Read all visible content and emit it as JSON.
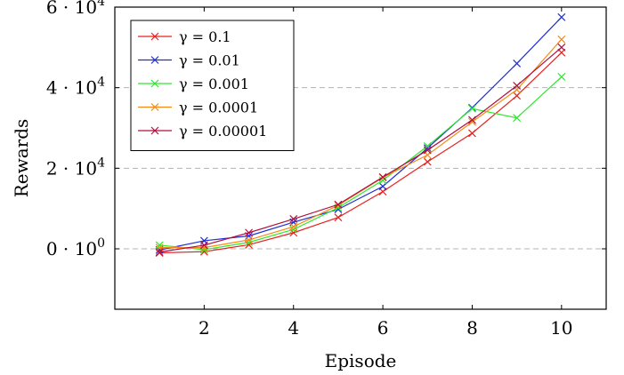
{
  "chart_data": {
    "type": "line",
    "title": "",
    "xlabel": "Episode",
    "ylabel": "Rewards",
    "xlim": [
      0,
      11
    ],
    "ylim": [
      -15000,
      60000
    ],
    "xticks": [
      {
        "value": 2,
        "label": "2"
      },
      {
        "value": 4,
        "label": "4"
      },
      {
        "value": 6,
        "label": "6"
      },
      {
        "value": 8,
        "label": "8"
      },
      {
        "value": 10,
        "label": "10"
      }
    ],
    "yticks": [
      {
        "value": 0,
        "mantissa": "0 · 10",
        "exp": "0"
      },
      {
        "value": 20000,
        "mantissa": "2 · 10",
        "exp": "4"
      },
      {
        "value": 40000,
        "mantissa": "4 · 10",
        "exp": "4"
      },
      {
        "value": 60000,
        "mantissa": "6 · 10",
        "exp": "4"
      }
    ],
    "grid": "horizontal-dashed",
    "legend_position": "top-left",
    "x": [
      1,
      2,
      3,
      4,
      5,
      6,
      7,
      8,
      9,
      10
    ],
    "series": [
      {
        "name": "γ = 0.1",
        "color": "#e8201e",
        "marker": "x",
        "values": [
          -1000,
          -700,
          1000,
          4000,
          7800,
          14200,
          21600,
          28700,
          38000,
          48700
        ]
      },
      {
        "name": "γ = 0.01",
        "color": "#1f2fd6",
        "marker": "x",
        "values": [
          -300,
          2000,
          3200,
          6600,
          9800,
          15500,
          25000,
          35000,
          46000,
          57500
        ]
      },
      {
        "name": "γ = 0.001",
        "color": "#2ee82e",
        "marker": "x",
        "values": [
          900,
          -200,
          1600,
          4800,
          10200,
          17000,
          25500,
          34800,
          32500,
          42700
        ]
      },
      {
        "name": "γ = 0.0001",
        "color": "#f58a18",
        "marker": "x",
        "values": [
          300,
          300,
          2200,
          5500,
          10800,
          17700,
          23300,
          31500,
          39500,
          52000
        ]
      },
      {
        "name": "γ = 0.00001",
        "color": "#b0103e",
        "marker": "x",
        "values": [
          -800,
          900,
          4000,
          7400,
          11000,
          17800,
          24500,
          32000,
          40500,
          50000
        ]
      }
    ]
  }
}
